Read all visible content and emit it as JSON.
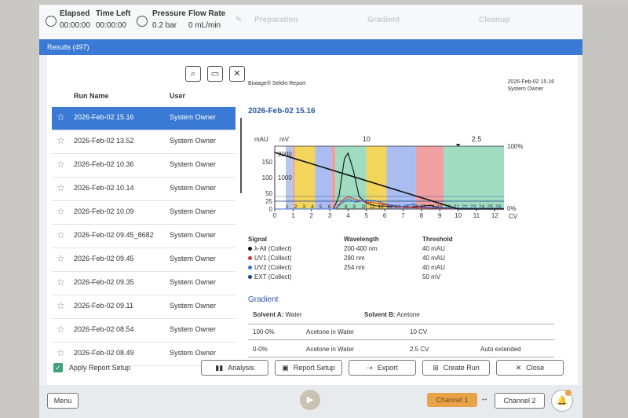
{
  "topbar": {
    "elapsed_label": "Elapsed",
    "elapsed_value": "00:00:00",
    "time_left_label": "Time Left",
    "time_left_value": "00:00:00",
    "pressure_label": "Pressure",
    "pressure_value": "0.2 bar",
    "flow_label": "Flow Rate",
    "flow_value": "0 mL/min",
    "phases": [
      "Preparation",
      "Gradient",
      "Cleanup"
    ]
  },
  "results_tab": "Results (497)",
  "runs": {
    "col_name": "Run Name",
    "col_owner": "User",
    "items": [
      {
        "name": "2026-Feb-02 15.16",
        "owner": "System Owner",
        "selected": true
      },
      {
        "name": "2026-Feb-02 13.52",
        "owner": "System Owner"
      },
      {
        "name": "2026-Feb-02 10.36",
        "owner": "System Owner"
      },
      {
        "name": "2026-Feb-02 10.14",
        "owner": "System Owner"
      },
      {
        "name": "2026-Feb-02 10.09",
        "owner": "System Owner"
      },
      {
        "name": "2026-Feb-02 09.45_8682",
        "owner": "System Owner"
      },
      {
        "name": "2026-Feb-02 09.45",
        "owner": "System Owner"
      },
      {
        "name": "2026-Feb-02 09.35",
        "owner": "System Owner"
      },
      {
        "name": "2026-Feb-02 09.11",
        "owner": "System Owner"
      },
      {
        "name": "2026-Feb-02 08.54",
        "owner": "System Owner"
      },
      {
        "name": "2026-Feb-02 08.49",
        "owner": "System Owner"
      }
    ]
  },
  "report": {
    "source": "Biotage® Selekt Report",
    "date_right": "2026-Feb-02 15.16",
    "owner_right": "System Owner",
    "title": "2026-Feb-02 15.16",
    "signal_hdr": "Signal",
    "wavelength_hdr": "Wavelength",
    "threshold_hdr": "Threshold",
    "signals": [
      {
        "name": "λ-All (Collect)",
        "wavelength": "200-400 nm",
        "threshold": "40 mAU",
        "color": "#111111"
      },
      {
        "name": "UV1 (Collect)",
        "wavelength": "280 nm",
        "threshold": "40 mAU",
        "color": "#d8322c"
      },
      {
        "name": "UV2 (Collect)",
        "wavelength": "254 nm",
        "threshold": "40 mAU",
        "color": "#3a6fd8"
      },
      {
        "name": "EXT (Collect)",
        "wavelength": "",
        "threshold": "50 mV",
        "color": "#1a3f8a"
      }
    ],
    "gradient_title": "Gradient",
    "solvent_a_label": "Solvent A:",
    "solvent_a": "Water",
    "solvent_b_label": "Solvent B:",
    "solvent_b": "Acetone",
    "gradient_rows": [
      {
        "range": "100-0%",
        "desc": "Acetone in Water",
        "length": "10 CV",
        "note": ""
      },
      {
        "range": "0-0%",
        "desc": "Acetone in Water",
        "length": "2.5 CV",
        "note": "Auto extended"
      }
    ]
  },
  "chart_data": {
    "type": "line",
    "left_unit_mau": "mAU",
    "left_unit_mv": "mV",
    "xlabel": "CV",
    "xlim": [
      0,
      12.5
    ],
    "ylim": [
      0,
      200
    ],
    "x_ticks": [
      0,
      1,
      2,
      3,
      4,
      5,
      6,
      7,
      8,
      9,
      10,
      11,
      12
    ],
    "y_ticks_mau": [
      0,
      25,
      50,
      100,
      150
    ],
    "y_ticks_mv": [
      "1000",
      "2000"
    ],
    "y_tick_mv_values": [
      100,
      175
    ],
    "right_top_label": "100%",
    "right_bottom_label": "0%",
    "segment_labels": [
      {
        "x": 5,
        "label": "10"
      },
      {
        "x": 11,
        "label": "2.5"
      }
    ],
    "fractions": [
      {
        "x0": 0.6,
        "x1": 1.0,
        "color": "#b8c6ea"
      },
      {
        "x0": 1.0,
        "x1": 1.1,
        "color": "#f0a0a0"
      },
      {
        "x0": 1.1,
        "x1": 2.2,
        "color": "#f2d55a"
      },
      {
        "x0": 2.2,
        "x1": 3.1,
        "color": "#a9bdf0"
      },
      {
        "x0": 3.1,
        "x1": 3.3,
        "color": "#f0a0a0"
      },
      {
        "x0": 3.3,
        "x1": 5.0,
        "color": "#9fdcc2"
      },
      {
        "x0": 5.0,
        "x1": 6.1,
        "color": "#f2d55a"
      },
      {
        "x0": 6.1,
        "x1": 7.7,
        "color": "#a9bdf0"
      },
      {
        "x0": 7.7,
        "x1": 9.2,
        "color": "#f0a0a0"
      },
      {
        "x0": 9.2,
        "x1": 12.5,
        "color": "#9fdcc2"
      }
    ],
    "fraction_numbers": [
      "1",
      "2",
      "3",
      "4",
      "5",
      "6",
      "7",
      "8",
      "9",
      "10",
      "11",
      "12",
      "13",
      "14",
      "15",
      "16",
      "17",
      "18",
      "19",
      "20",
      "21",
      "22",
      "23",
      "24",
      "25",
      "26"
    ],
    "series": [
      {
        "name": "λ-All",
        "color": "#111111",
        "x": [
          0,
          3.2,
          3.5,
          3.8,
          4.0,
          4.3,
          4.6,
          5.0,
          5.5,
          6.5,
          7.5,
          8.5,
          9,
          10,
          12.5
        ],
        "y": [
          0,
          0,
          40,
          160,
          178,
          120,
          40,
          18,
          10,
          8,
          6,
          12,
          4,
          2,
          1
        ]
      },
      {
        "name": "UV1",
        "color": "#d8322c",
        "x": [
          0,
          3.3,
          3.7,
          4.0,
          4.4,
          5.0,
          5.6,
          6.2,
          7.0,
          8.0,
          9.0,
          12.5
        ],
        "y": [
          0,
          0,
          28,
          40,
          30,
          22,
          18,
          12,
          6,
          4,
          2,
          1
        ]
      },
      {
        "name": "UV2",
        "color": "#3a6fd8",
        "x": [
          0,
          3.3,
          3.7,
          4.0,
          4.4,
          5.0,
          5.5,
          6.2,
          7.0,
          7.6,
          8.0,
          9.0,
          12.5
        ],
        "y": [
          0,
          0,
          20,
          32,
          22,
          28,
          26,
          14,
          8,
          16,
          6,
          3,
          2
        ]
      },
      {
        "name": "Gradient",
        "color": "#111111",
        "x": [
          0,
          10,
          12.5
        ],
        "y": [
          180,
          0,
          0
        ]
      }
    ]
  },
  "bottom": {
    "apply_label": "Apply Report Setup",
    "analysis": "Analysis",
    "report_setup": "Report Setup",
    "export": "Export",
    "create_run": "Create Run",
    "close": "Close"
  },
  "footer": {
    "menu": "Menu",
    "channel1": "Channel 1",
    "channel2": "Channel 2"
  }
}
